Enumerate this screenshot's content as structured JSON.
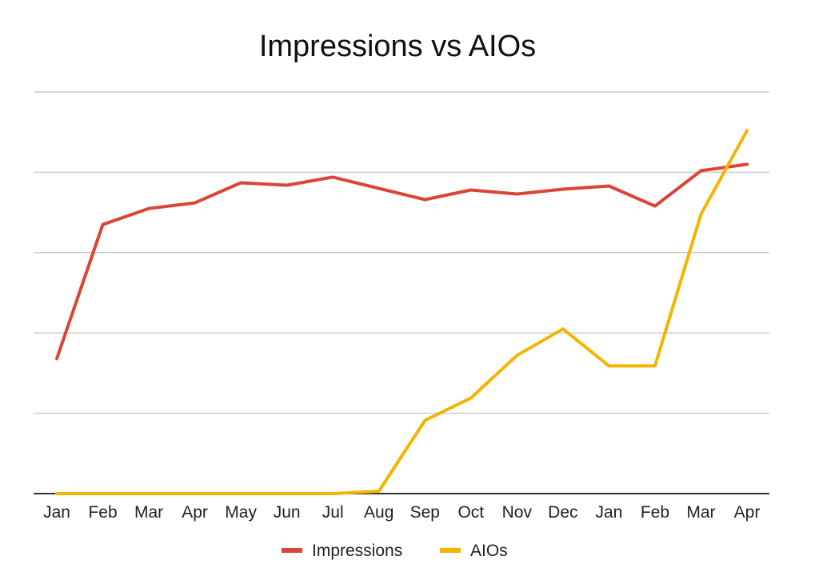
{
  "chart_data": {
    "type": "line",
    "title": "Impressions vs AIOs",
    "xlabel": "",
    "ylabel": "",
    "categories": [
      "Jan",
      "Feb",
      "Mar",
      "Apr",
      "May",
      "Jun",
      "Jul",
      "Aug",
      "Sep",
      "Oct",
      "Nov",
      "Dec",
      "Jan",
      "Feb",
      "Mar",
      "Apr"
    ],
    "ylim": [
      0,
      5
    ],
    "grid": true,
    "legend": "bottom",
    "series": [
      {
        "name": "Impressions",
        "color": "#db4437",
        "values": [
          1.68,
          3.35,
          3.55,
          3.62,
          3.87,
          3.84,
          3.94,
          3.8,
          3.66,
          3.78,
          3.73,
          3.79,
          3.83,
          3.58,
          4.02,
          4.1
        ]
      },
      {
        "name": "AIOs",
        "color": "#f4b400",
        "values": [
          0,
          0,
          0,
          0,
          0,
          0,
          0,
          0.03,
          0.91,
          1.19,
          1.72,
          2.05,
          1.59,
          1.59,
          3.48,
          4.52
        ]
      }
    ]
  }
}
